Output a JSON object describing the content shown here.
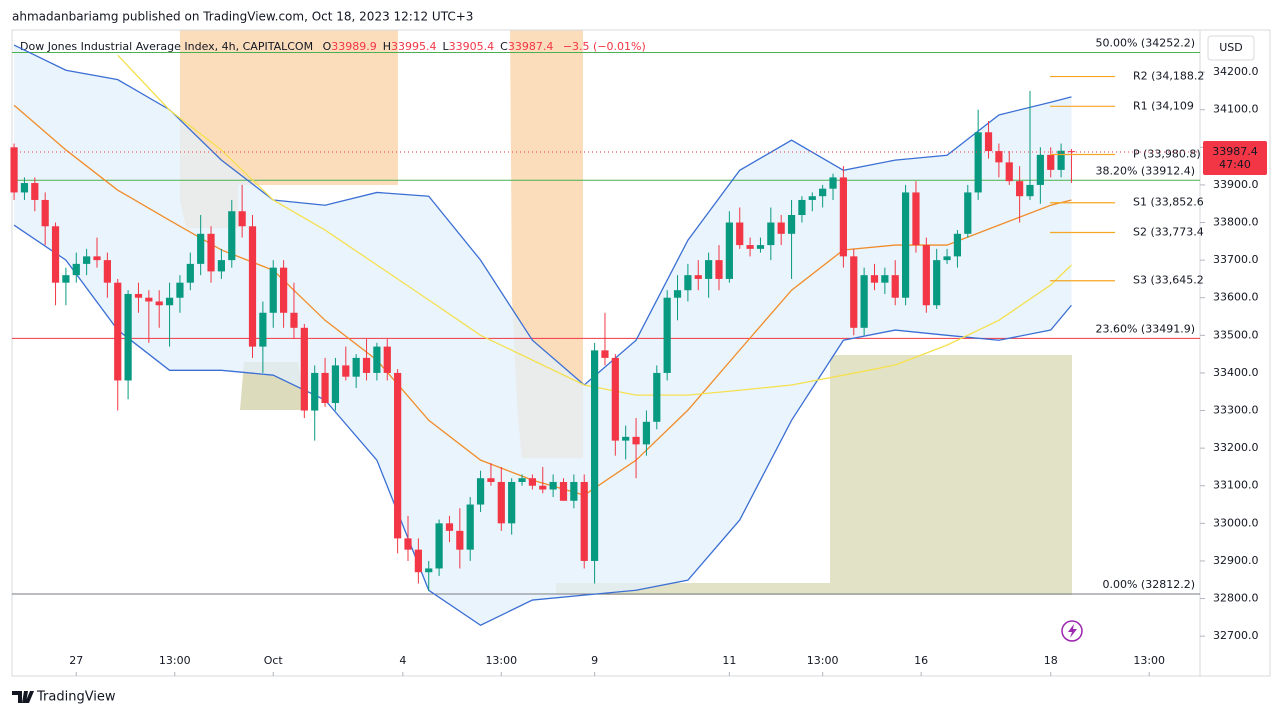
{
  "header": {
    "publisher": "ahmadanbariamg published on TradingView.com, Oct 18, 2023 12:12 UTC+3",
    "symbol": "Dow Jones Industrial Average Index, 4h, CAPITALCOM",
    "ohlc": [
      {
        "key": "O",
        "value": "33989.9"
      },
      {
        "key": "H",
        "value": "33995.4"
      },
      {
        "key": "L",
        "value": "33905.4"
      },
      {
        "key": "C",
        "value": "33987.4"
      }
    ],
    "change": "−3.5 (−0.01%)",
    "currency": "USD",
    "countdown": "47:40"
  },
  "footer": {
    "brand": "TradingView"
  },
  "chart_data": {
    "type": "candlestick",
    "up_color": "#089981",
    "down_color": "#f23645",
    "grid": false,
    "open": [
      34000,
      33880,
      33905,
      33860,
      33790,
      33640,
      33660,
      33690,
      33710,
      33700,
      33640,
      33380,
      33610,
      33600,
      33590,
      33580,
      33600,
      33640,
      33690,
      33770,
      33670,
      33700,
      33830,
      33790,
      33470,
      33560,
      33680,
      33560,
      33520,
      33300,
      33400,
      33320,
      33420,
      33390,
      33440,
      33400,
      33470,
      33400,
      32960,
      32930,
      32870,
      32880,
      33000,
      32980,
      32930,
      33050,
      33120,
      33110,
      33000,
      33110,
      33120,
      33100,
      33090,
      33110,
      33060,
      33110,
      32900,
      33460,
      33440,
      33220,
      33230,
      33210,
      33270,
      33400,
      33600,
      33620,
      33660,
      33650,
      33700,
      33650,
      33800,
      33740,
      33730,
      33740,
      33800,
      33770,
      33820,
      33860,
      33870,
      33890,
      33920,
      33710,
      33520,
      33660,
      33640,
      33660,
      33600,
      33880,
      33740,
      33580,
      33700,
      33710,
      33770,
      33880,
      34040,
      33990,
      33960,
      33910,
      33870,
      33900,
      33980,
      33940,
      33989.9
    ],
    "high": [
      34010,
      33920,
      33920,
      33880,
      33800,
      33680,
      33720,
      33730,
      33760,
      33720,
      33650,
      33620,
      33640,
      33620,
      33620,
      33640,
      33660,
      33720,
      33820,
      33790,
      33730,
      33860,
      33900,
      33820,
      33590,
      33700,
      33700,
      33640,
      33530,
      33420,
      33440,
      33440,
      33470,
      33450,
      33490,
      33480,
      33490,
      33410,
      33020,
      32960,
      32900,
      33010,
      33020,
      33040,
      33070,
      33140,
      33160,
      33150,
      33120,
      33130,
      33130,
      33150,
      33130,
      33120,
      33130,
      33130,
      33480,
      33560,
      33450,
      33260,
      33280,
      33300,
      33420,
      33620,
      33660,
      33690,
      33700,
      33720,
      33740,
      33830,
      33840,
      33760,
      33760,
      33840,
      33820,
      33860,
      33870,
      33880,
      33900,
      33930,
      33950,
      33730,
      33680,
      33690,
      33680,
      33700,
      33900,
      33910,
      33760,
      33730,
      33730,
      33780,
      33900,
      34100,
      34070,
      34010,
      33990,
      33950,
      34150,
      34000,
      34000,
      34010,
      33995.4
    ],
    "low": [
      33860,
      33860,
      33830,
      33740,
      33580,
      33580,
      33640,
      33660,
      33680,
      33600,
      33300,
      33330,
      33560,
      33480,
      33520,
      33470,
      33560,
      33620,
      33660,
      33640,
      33650,
      33680,
      33760,
      33440,
      33400,
      33520,
      33520,
      33490,
      33280,
      33220,
      33310,
      33300,
      33380,
      33360,
      33380,
      33380,
      33380,
      32920,
      32900,
      32840,
      32820,
      32860,
      32950,
      32880,
      32900,
      33030,
      33100,
      32980,
      32970,
      33100,
      33090,
      33080,
      33070,
      33060,
      33040,
      32880,
      32840,
      33420,
      33180,
      33170,
      33120,
      33180,
      33250,
      33380,
      33540,
      33590,
      33620,
      33600,
      33620,
      33640,
      33730,
      33710,
      33720,
      33700,
      33740,
      33650,
      33800,
      33830,
      33840,
      33860,
      33680,
      33500,
      33500,
      33620,
      33610,
      33580,
      33580,
      33720,
      33560,
      33570,
      33690,
      33680,
      33760,
      33860,
      33970,
      33920,
      33900,
      33800,
      33860,
      33850,
      33920,
      33920,
      33905.4
    ],
    "close": [
      33880,
      33905,
      33860,
      33790,
      33640,
      33660,
      33690,
      33710,
      33700,
      33640,
      33380,
      33610,
      33600,
      33590,
      33580,
      33600,
      33640,
      33690,
      33770,
      33670,
      33700,
      33830,
      33790,
      33470,
      33560,
      33680,
      33560,
      33520,
      33300,
      33400,
      33320,
      33420,
      33390,
      33440,
      33400,
      33470,
      33400,
      32960,
      32930,
      32870,
      32880,
      33000,
      32980,
      32930,
      33050,
      33120,
      33110,
      33000,
      33110,
      33120,
      33100,
      33090,
      33110,
      33060,
      33110,
      32900,
      33460,
      33440,
      33220,
      33230,
      33210,
      33270,
      33400,
      33600,
      33620,
      33660,
      33650,
      33700,
      33650,
      33800,
      33740,
      33730,
      33740,
      33800,
      33770,
      33820,
      33860,
      33870,
      33890,
      33920,
      33710,
      33520,
      33660,
      33640,
      33660,
      33600,
      33880,
      33740,
      33580,
      33700,
      33710,
      33770,
      33880,
      34040,
      33990,
      33960,
      33910,
      33870,
      33900,
      33980,
      33940,
      33990.9,
      33987.4
    ],
    "line_x": [
      0,
      5,
      10,
      15,
      20,
      25,
      30,
      35,
      40,
      45,
      50,
      55,
      60,
      65,
      70,
      75,
      80,
      85,
      90,
      95,
      100,
      102
    ],
    "lines": [
      {
        "color": "#3b6fd4",
        "values": [
          34272,
          34205,
          34180,
          34100,
          33966,
          33860,
          33846,
          33880,
          33870,
          33700,
          33487,
          33368,
          33487,
          33753,
          33939,
          34019,
          33939,
          33966,
          33979,
          34086,
          34120,
          34134
        ]
      },
      {
        "color": "#3b6fd4",
        "values": [
          33793,
          33700,
          33514,
          33407,
          33407,
          33394,
          33328,
          33168,
          32822,
          32729,
          32796,
          32809,
          32822,
          32849,
          33009,
          33274,
          33487,
          33514,
          33500,
          33487,
          33514,
          33580
        ]
      },
      {
        "color": "#f08c2a",
        "values": [
          34112,
          33993,
          33886,
          33806,
          33727,
          33673,
          33540,
          33434,
          33274,
          33168,
          33115,
          33075,
          33168,
          33301,
          33461,
          33620,
          33727,
          33740,
          33740,
          33793,
          33846,
          33860
        ]
      },
      {
        "color": "#f5e050",
        "values": [
          null,
          null,
          34245,
          34099,
          33993,
          33860,
          33780,
          33687,
          33594,
          33500,
          33434,
          33368,
          33341,
          33341,
          33354,
          33368,
          33394,
          33421,
          33474,
          33540,
          33634,
          33687
        ]
      }
    ],
    "band_fill": "#e3f0fb",
    "fib_levels": [
      {
        "label": "50.00% (34252.2)",
        "value": 34252.2,
        "color": "#4caf50"
      },
      {
        "label": "38.20% (33912.4)",
        "value": 33912.4,
        "color": "#4caf50"
      },
      {
        "label": "23.60% (33491.9)",
        "value": 33491.9,
        "color": "#f23645"
      },
      {
        "label": "0.00% (32812.2)",
        "value": 32812.2,
        "color": "#787b86"
      }
    ],
    "pivot_levels": [
      {
        "label": "R2 (34,188.2",
        "value": 34188.2
      },
      {
        "label": "R1 (34,109",
        "value": 34109
      },
      {
        "label": "P (33,980.8)",
        "value": 33980.8
      },
      {
        "label": "S1 (33,852.6",
        "value": 33852.6
      },
      {
        "label": "S2 (33,773.4",
        "value": 33773.4
      },
      {
        "label": "S3 (33,645.2",
        "value": 33645.2
      }
    ],
    "pivot_color": "#f5a623",
    "xlim": [
      -0.2,
      114.4
    ],
    "ylim": [
      32594,
      34312
    ],
    "xticks": [
      {
        "value": 6,
        "label": "27"
      },
      {
        "value": 15.5,
        "label": "13:00"
      },
      {
        "value": 25,
        "label": "Oct"
      },
      {
        "value": 37.5,
        "label": "4"
      },
      {
        "value": 47,
        "label": "13:00"
      },
      {
        "value": 56,
        "label": "9"
      },
      {
        "value": 69,
        "label": "11"
      },
      {
        "value": 78,
        "label": "13:00"
      },
      {
        "value": 87.5,
        "label": "16"
      },
      {
        "value": 100,
        "label": "18"
      },
      {
        "value": 109.5,
        "label": "13:00"
      }
    ],
    "yticks": [
      {
        "value": 32700,
        "label": "32700.0"
      },
      {
        "value": 32800,
        "label": "32800.0"
      },
      {
        "value": 32900,
        "label": "32900.0"
      },
      {
        "value": 33000,
        "label": "33000.0"
      },
      {
        "value": 33100,
        "label": "33100.0"
      },
      {
        "value": 33200,
        "label": "33200.0"
      },
      {
        "value": 33300,
        "label": "33300.0"
      },
      {
        "value": 33400,
        "label": "33400.0"
      },
      {
        "value": 33500,
        "label": "33500.0"
      },
      {
        "value": 33600,
        "label": "33600.0"
      },
      {
        "value": 33700,
        "label": "33700.0"
      },
      {
        "value": 33800,
        "label": "33800.0"
      },
      {
        "value": 33900,
        "label": "33900.0"
      },
      {
        "value": 34000,
        "label": "34000.0"
      },
      {
        "value": 34100,
        "label": "34100.0"
      },
      {
        "value": 34200,
        "label": "34200.0"
      }
    ]
  }
}
